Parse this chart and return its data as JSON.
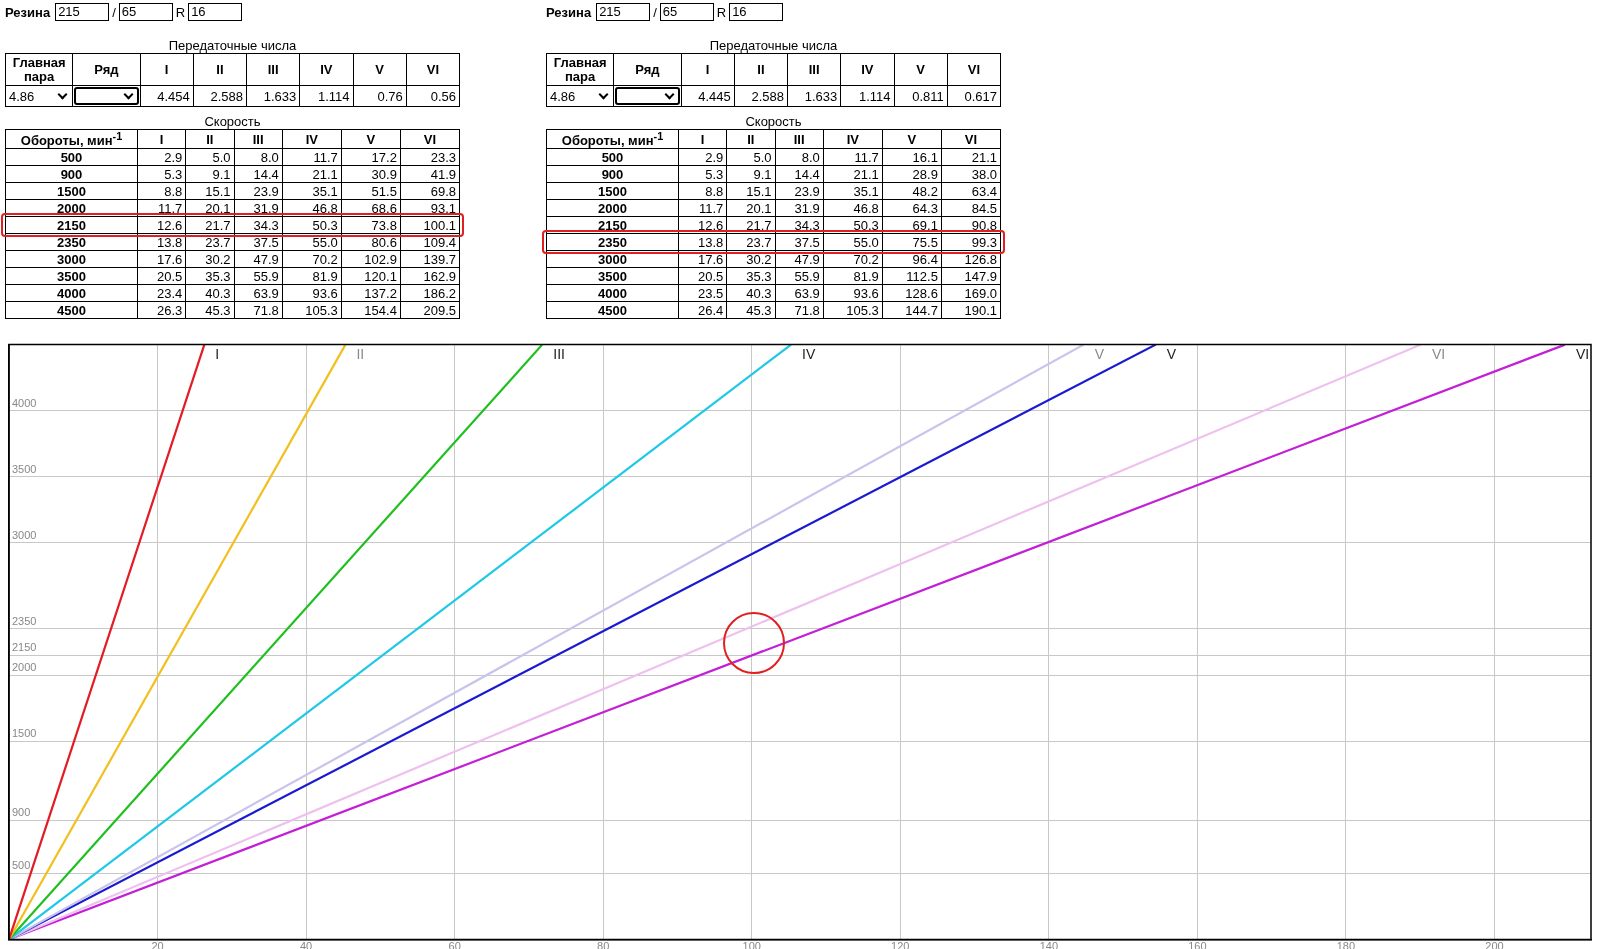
{
  "chart_data": [
    {
      "type": "other",
      "data_labels": true,
      "annotations": [
        "Резина",
        "215",
        "/",
        "65",
        "R",
        "16"
      ],
      "title": "Передаточные числа",
      "categories": [
        "Главная пара",
        "Ряд",
        "I",
        "II",
        "III",
        "IV",
        "V",
        "VI"
      ],
      "values": [
        4.86,
        null,
        4.454,
        2.588,
        1.633,
        1.114,
        0.76,
        0.56
      ]
    },
    {
      "type": "other",
      "data_labels": true,
      "annotations": [
        "Резина",
        "215",
        "/",
        "65",
        "R",
        "16"
      ],
      "title": "Передаточные числа",
      "categories": [
        "Главная пара",
        "Ряд",
        "I",
        "II",
        "III",
        "IV",
        "V",
        "VI"
      ],
      "values": [
        4.86,
        null,
        4.445,
        2.588,
        1.633,
        1.114,
        0.811,
        0.617
      ]
    },
    {
      "type": "heatmap",
      "data_labels": true,
      "title": "Скорость",
      "ylabel": "Обороты, мин$^{-1}$",
      "categories": [
        "I",
        "II",
        "III",
        "IV",
        "V",
        "VI"
      ],
      "y_categories": [
        "500",
        "900",
        "1500",
        "2000",
        "2150",
        "2350",
        "3000",
        "3500",
        "4000",
        "4500"
      ],
      "cells": [
        [
          2.9,
          5.0,
          8.0,
          11.7,
          17.2,
          23.3
        ],
        [
          5.3,
          9.1,
          14.4,
          21.1,
          30.9,
          41.9
        ],
        [
          8.8,
          15.1,
          23.9,
          35.1,
          51.5,
          69.8
        ],
        [
          11.7,
          20.1,
          31.9,
          46.8,
          68.6,
          93.1
        ],
        [
          12.6,
          21.7,
          34.3,
          50.3,
          73.8,
          100.1
        ],
        [
          13.8,
          23.7,
          37.5,
          55.0,
          80.6,
          109.4
        ],
        [
          17.6,
          30.2,
          47.9,
          70.2,
          102.9,
          139.7
        ],
        [
          20.5,
          35.3,
          55.9,
          81.9,
          120.1,
          162.9
        ],
        [
          23.4,
          40.3,
          63.9,
          93.6,
          137.2,
          186.2
        ],
        [
          26.3,
          45.3,
          71.8,
          105.3,
          154.4,
          209.5
        ]
      ],
      "cell_labels": [
        [
          "2.9",
          "5.0",
          "8.0",
          "11.7",
          "17.2",
          "23.3"
        ],
        [
          "5.3",
          "9.1",
          "14.4",
          "21.1",
          "30.9",
          "41.9"
        ],
        [
          "8.8",
          "15.1",
          "23.9",
          "35.1",
          "51.5",
          "69.8"
        ],
        [
          "11.7",
          "20.1",
          "31.9",
          "46.8",
          "68.6",
          "93.1"
        ],
        [
          "12.6",
          "21.7",
          "34.3",
          "50.3",
          "73.8",
          "100.1"
        ],
        [
          "13.8",
          "23.7",
          "37.5",
          "55.0",
          "80.6",
          "109.4"
        ],
        [
          "17.6",
          "30.2",
          "47.9",
          "70.2",
          "102.9",
          "139.7"
        ],
        [
          "20.5",
          "35.3",
          "55.9",
          "81.9",
          "120.1",
          "162.9"
        ],
        [
          "23.4",
          "40.3",
          "63.9",
          "93.6",
          "137.2",
          "186.2"
        ],
        [
          "26.3",
          "45.3",
          "71.8",
          "105.3",
          "154.4",
          "209.5"
        ]
      ]
    },
    {
      "type": "heatmap",
      "data_labels": true,
      "title": "Скорость",
      "ylabel": "Обороты, мин$^{-1}$",
      "categories": [
        "I",
        "II",
        "III",
        "IV",
        "V",
        "VI"
      ],
      "y_categories": [
        "500",
        "900",
        "1500",
        "2000",
        "2150",
        "2350",
        "3000",
        "3500",
        "4000",
        "4500"
      ],
      "cells": [
        [
          2.9,
          5.0,
          8.0,
          11.7,
          16.1,
          21.1
        ],
        [
          5.3,
          9.1,
          14.4,
          21.1,
          28.9,
          38.0
        ],
        [
          8.8,
          15.1,
          23.9,
          35.1,
          48.2,
          63.4
        ],
        [
          11.7,
          20.1,
          31.9,
          46.8,
          64.3,
          84.5
        ],
        [
          12.6,
          21.7,
          34.3,
          50.3,
          69.1,
          90.8
        ],
        [
          13.8,
          23.7,
          37.5,
          55.0,
          75.5,
          99.3
        ],
        [
          17.6,
          30.2,
          47.9,
          70.2,
          96.4,
          126.8
        ],
        [
          20.5,
          35.3,
          55.9,
          81.9,
          112.5,
          147.9
        ],
        [
          23.5,
          40.3,
          63.9,
          93.6,
          128.6,
          169.0
        ],
        [
          26.4,
          45.3,
          71.8,
          105.3,
          144.7,
          190.1
        ]
      ],
      "cell_labels": [
        [
          "2.9",
          "5.0",
          "8.0",
          "11.7",
          "16.1",
          "21.1"
        ],
        [
          "5.3",
          "9.1",
          "14.4",
          "21.1",
          "28.9",
          "38.0"
        ],
        [
          "8.8",
          "15.1",
          "23.9",
          "35.1",
          "48.2",
          "63.4"
        ],
        [
          "11.7",
          "20.1",
          "31.9",
          "46.8",
          "64.3",
          "84.5"
        ],
        [
          "12.6",
          "21.7",
          "34.3",
          "50.3",
          "69.1",
          "90.8"
        ],
        [
          "13.8",
          "23.7",
          "37.5",
          "55.0",
          "75.5",
          "99.3"
        ],
        [
          "17.6",
          "30.2",
          "47.9",
          "70.2",
          "96.4",
          "126.8"
        ],
        [
          "20.5",
          "35.3",
          "55.9",
          "81.9",
          "112.5",
          "147.9"
        ],
        [
          "23.5",
          "40.3",
          "63.9",
          "93.6",
          "128.6",
          "169.0"
        ],
        [
          "26.4",
          "45.3",
          "71.8",
          "105.3",
          "144.7",
          "190.1"
        ]
      ]
    },
    {
      "type": "line",
      "xlim": [
        0,
        213
      ],
      "ylim": [
        0,
        4500
      ],
      "xticks": [
        20,
        40,
        60,
        80,
        100,
        120,
        140,
        160,
        180,
        200
      ],
      "yticks": [
        500,
        900,
        1500,
        2000,
        2150,
        2350,
        3000,
        3500,
        4000
      ],
      "grid": true,
      "marker": "none",
      "line_style": "solid",
      "series": [
        {
          "name": "I",
          "color": "#e31b23",
          "x": [
            0,
            26.3
          ],
          "values": [
            0,
            4500
          ]
        },
        {
          "name": "II",
          "color": "#f2c01e",
          "x": [
            0,
            45.3
          ],
          "values": [
            0,
            4500
          ]
        },
        {
          "name": "III",
          "color": "#1fbf1f",
          "x": [
            0,
            71.8
          ],
          "values": [
            0,
            4500
          ]
        },
        {
          "name": "IV",
          "color": "#1ec8e6",
          "x": [
            0,
            105.3
          ],
          "values": [
            0,
            4500
          ]
        },
        {
          "name": "V",
          "color": "#c8c4ec",
          "x": [
            0,
            144.7
          ],
          "values": [
            0,
            4500
          ]
        },
        {
          "name": "V",
          "color": "#1a1ad0",
          "x": [
            0,
            154.4
          ],
          "values": [
            0,
            4500
          ]
        },
        {
          "name": "VI",
          "color": "#eec0ee",
          "x": [
            0,
            190.1
          ],
          "values": [
            0,
            4500
          ]
        },
        {
          "name": "VI",
          "color": "#c21fd6",
          "x": [
            0,
            209.5
          ],
          "values": [
            0,
            4500
          ]
        }
      ]
    }
  ]
}
